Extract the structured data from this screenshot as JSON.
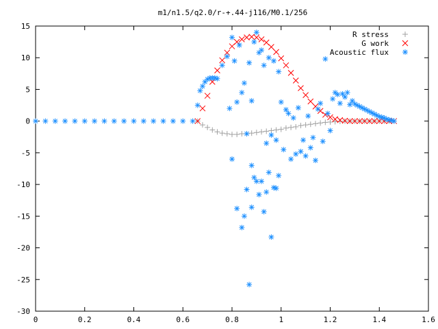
{
  "chart_data": {
    "type": "scatter",
    "title": "m1/n1.5/q2.0/r-+.44-j116/M0.1/256",
    "xlabel": "",
    "ylabel": "",
    "xlim": [
      0,
      1.6
    ],
    "ylim": [
      -30,
      15
    ],
    "xticks": [
      "0",
      "0.2",
      "0.4",
      "0.6",
      "0.8",
      "1",
      "1.2",
      "1.4",
      "1.6"
    ],
    "yticks": [
      "15",
      "10",
      "5",
      "0",
      "-5",
      "-10",
      "-15",
      "-20",
      "-25",
      "-30"
    ],
    "grid": false,
    "legend_position": "top-right",
    "series": [
      {
        "name": "R stress",
        "marker": "+",
        "color": "#a0a0a0",
        "x": [
          0.66,
          0.68,
          0.7,
          0.72,
          0.74,
          0.76,
          0.78,
          0.8,
          0.82,
          0.84,
          0.86,
          0.88,
          0.9,
          0.92,
          0.94,
          0.96,
          0.98,
          1.0,
          1.02,
          1.04,
          1.06,
          1.08,
          1.1,
          1.12,
          1.14,
          1.16,
          1.18,
          1.2,
          1.22,
          1.24,
          1.26,
          1.28,
          1.3,
          1.32,
          1.34,
          1.36,
          1.38,
          1.4,
          1.42,
          1.44,
          1.46
        ],
        "y": [
          0,
          -0.6,
          -1.0,
          -1.4,
          -1.7,
          -1.9,
          -2.0,
          -2.1,
          -2.1,
          -2.0,
          -2.0,
          -1.9,
          -1.8,
          -1.7,
          -1.6,
          -1.5,
          -1.4,
          -1.3,
          -1.1,
          -1.0,
          -0.9,
          -0.7,
          -0.6,
          -0.5,
          -0.4,
          -0.3,
          -0.2,
          -0.15,
          -0.1,
          -0.05,
          0,
          0,
          0,
          0,
          0,
          0,
          0,
          0,
          0,
          0,
          0
        ]
      },
      {
        "name": "G work",
        "marker": "x",
        "color": "#ff0000",
        "x": [
          0.66,
          0.68,
          0.7,
          0.72,
          0.74,
          0.76,
          0.78,
          0.8,
          0.82,
          0.84,
          0.86,
          0.88,
          0.9,
          0.92,
          0.94,
          0.96,
          0.98,
          1.0,
          1.02,
          1.04,
          1.06,
          1.08,
          1.1,
          1.12,
          1.14,
          1.16,
          1.18,
          1.2,
          1.22,
          1.24,
          1.26,
          1.28,
          1.3,
          1.32,
          1.34,
          1.36,
          1.38,
          1.4,
          1.42,
          1.44,
          1.46
        ],
        "y": [
          0,
          2.0,
          4.0,
          6.2,
          8.0,
          9.6,
          10.8,
          11.8,
          12.5,
          12.9,
          13.2,
          13.3,
          13.2,
          12.9,
          12.4,
          11.7,
          10.9,
          9.9,
          8.8,
          7.6,
          6.4,
          5.2,
          4.1,
          3.1,
          2.3,
          1.6,
          1.0,
          0.6,
          0.3,
          0.15,
          0.05,
          0,
          0,
          0,
          0,
          0,
          0,
          0,
          0,
          0,
          0
        ]
      },
      {
        "name": "Acoustic flux",
        "marker": "*",
        "color": "#1e90ff",
        "x": [
          0.0,
          0.04,
          0.08,
          0.12,
          0.16,
          0.2,
          0.24,
          0.28,
          0.32,
          0.36,
          0.4,
          0.44,
          0.48,
          0.52,
          0.56,
          0.6,
          0.64,
          0.66,
          0.67,
          0.68,
          0.69,
          0.7,
          0.71,
          0.72,
          0.73,
          0.74,
          0.76,
          0.78,
          0.79,
          0.8,
          0.81,
          0.82,
          0.83,
          0.84,
          0.85,
          0.86,
          0.87,
          0.88,
          0.89,
          0.9,
          0.91,
          0.92,
          0.93,
          0.94,
          0.95,
          0.96,
          0.97,
          0.98,
          0.99,
          1.0,
          1.01,
          1.02,
          1.03,
          1.04,
          1.05,
          1.06,
          1.07,
          1.08,
          1.09,
          1.1,
          1.11,
          1.12,
          1.13,
          1.14,
          1.15,
          1.16,
          1.17,
          1.18,
          1.19,
          1.2,
          1.21,
          1.22,
          1.23,
          1.24,
          1.25,
          1.26,
          1.27,
          1.28,
          1.29,
          1.3,
          1.31,
          1.32,
          1.33,
          1.34,
          1.35,
          1.36,
          1.37,
          1.38,
          1.39,
          1.4,
          1.41,
          1.42,
          1.43,
          1.44,
          1.45,
          1.46,
          0.8,
          0.82,
          0.84,
          0.86,
          0.88,
          0.9,
          0.92,
          0.94,
          0.96,
          0.98,
          0.85,
          0.87,
          0.89,
          0.91,
          0.93,
          0.95,
          0.97,
          0.99,
          0.88
        ],
        "y": [
          0,
          0,
          0,
          0,
          0,
          0,
          0,
          0,
          0,
          0,
          0,
          0,
          0,
          0,
          0,
          0,
          0,
          2.5,
          4.8,
          5.5,
          6.2,
          6.6,
          6.8,
          6.8,
          6.8,
          6.7,
          8.8,
          10.2,
          2.0,
          13.2,
          9.5,
          3.0,
          12.0,
          4.5,
          6.0,
          -2.0,
          9.2,
          3.2,
          12.5,
          14.0,
          10.8,
          11.2,
          8.8,
          -3.5,
          10.0,
          -2.2,
          9.5,
          -3.0,
          7.8,
          3.0,
          -4.5,
          1.8,
          1.2,
          -6.0,
          0.5,
          -5.2,
          2.1,
          -4.8,
          -3.0,
          -5.5,
          0.8,
          -4.2,
          -2.6,
          -6.2,
          1.9,
          2.8,
          -3.2,
          9.8,
          1.2,
          -1.5,
          3.5,
          4.5,
          4.2,
          2.8,
          4.3,
          3.8,
          4.5,
          2.6,
          3.2,
          2.7,
          2.5,
          2.3,
          2.1,
          1.9,
          1.7,
          1.5,
          1.3,
          1.1,
          0.9,
          0.7,
          0.6,
          0.5,
          0.3,
          0.2,
          0.1,
          0,
          -6.0,
          -13.8,
          -16.8,
          -10.8,
          -13.6,
          -9.5,
          -9.5,
          -11.2,
          -18.3,
          -10.6,
          -15.0,
          -25.8,
          -8.9,
          -11.6,
          -14.3,
          -8.1,
          -10.5,
          -8.6,
          -7.0
        ]
      }
    ]
  }
}
